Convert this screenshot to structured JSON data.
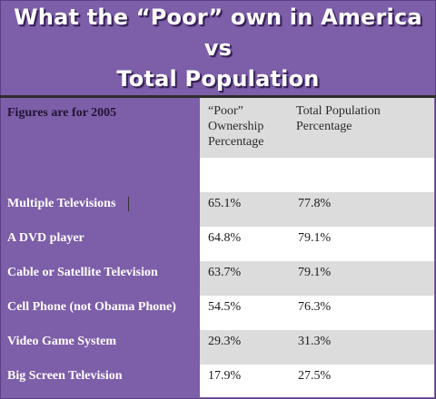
{
  "title": {
    "line1": "What the “Poor” own in America vs",
    "line2": "Total Population"
  },
  "table_header": {
    "figures_note": "Figures are for 2005",
    "col1": [
      "“Poor”",
      "Ownership",
      "Percentage"
    ],
    "col2": [
      "Total Population",
      "Percentage"
    ]
  },
  "colors": {
    "purple": "#7d5ea8",
    "band_grey": "#dcdcdc",
    "white": "#ffffff"
  },
  "chart_data": {
    "type": "table",
    "title": "What the “Poor” own in America vs Total Population",
    "note": "Figures are for 2005",
    "columns": [
      "“Poor” Ownership Percentage",
      "Total Population Percentage"
    ],
    "rows": [
      {
        "item": "Multiple Televisions",
        "poor": "65.1%",
        "total": "77.8%"
      },
      {
        "item": "A DVD player",
        "poor": "64.8%",
        "total": "79.1%"
      },
      {
        "item": "Cable or Satellite Television",
        "poor": "63.7%",
        "total": "79.1%"
      },
      {
        "item": "Cell Phone (not Obama Phone)",
        "poor": "54.5%",
        "total": "76.3%"
      },
      {
        "item": "Video Game System",
        "poor": "29.3%",
        "total": "31.3%"
      },
      {
        "item": "Big Screen Television",
        "poor": "17.9%",
        "total": "27.5%"
      }
    ]
  }
}
